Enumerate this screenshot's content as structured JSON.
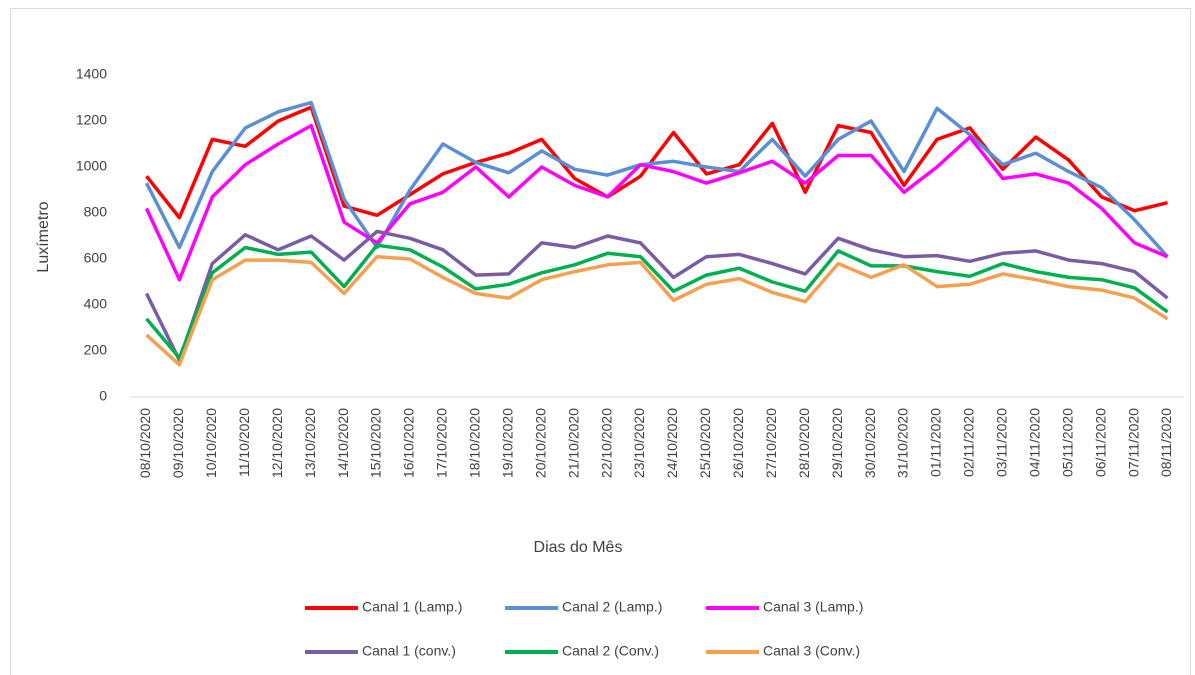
{
  "chart_data": {
    "type": "line",
    "x_label": "Dias do Mês",
    "y_label": "Luxímetro",
    "categories": [
      "08/10/2020",
      "09/10/2020",
      "10/10/2020",
      "11/10/2020",
      "12/10/2020",
      "13/10/2020",
      "14/10/2020",
      "15/10/2020",
      "16/10/2020",
      "17/10/2020",
      "18/10/2020",
      "19/10/2020",
      "20/10/2020",
      "21/10/2020",
      "22/10/2020",
      "23/10/2020",
      "24/10/2020",
      "25/10/2020",
      "26/10/2020",
      "27/10/2020",
      "28/10/2020",
      "29/10/2020",
      "30/10/2020",
      "31/10/2020",
      "01/11/2020",
      "02/11/2020",
      "03/11/2020",
      "04/11/2020",
      "05/11/2020",
      "06/11/2020",
      "07/11/2020",
      "08/11/2020"
    ],
    "series": [
      {
        "name": "Canal 1 (Lamp.)",
        "color": "#ff0000",
        "values": [
          960,
          780,
          1120,
          1090,
          1200,
          1260,
          830,
          790,
          880,
          970,
          1020,
          1060,
          1120,
          950,
          870,
          960,
          1150,
          970,
          1010,
          1190,
          890,
          1180,
          1150,
          920,
          1120,
          1170,
          990,
          1130,
          1030,
          870,
          810,
          845
        ]
      },
      {
        "name": "Canal 2 (Lamp.)",
        "color": "#5b8fd5",
        "values": [
          930,
          650,
          980,
          1170,
          1240,
          1280,
          860,
          650,
          900,
          1100,
          1020,
          975,
          1070,
          990,
          965,
          1010,
          1025,
          1000,
          980,
          1120,
          960,
          1120,
          1200,
          980,
          1255,
          1140,
          1010,
          1060,
          980,
          910,
          770,
          610
        ]
      },
      {
        "name": "Canal 3 (Lamp.)",
        "color": "#ff00ff",
        "values": [
          820,
          510,
          870,
          1010,
          1100,
          1180,
          760,
          670,
          840,
          890,
          1000,
          870,
          1000,
          920,
          870,
          1010,
          980,
          930,
          975,
          1025,
          930,
          1050,
          1050,
          890,
          1000,
          1130,
          950,
          970,
          930,
          820,
          670,
          610
        ]
      },
      {
        "name": "Canal 1 (conv.)",
        "color": "#7a5ca6",
        "values": [
          450,
          160,
          580,
          705,
          640,
          700,
          595,
          720,
          690,
          640,
          530,
          535,
          670,
          650,
          700,
          670,
          520,
          610,
          620,
          580,
          535,
          690,
          640,
          610,
          615,
          590,
          625,
          635,
          595,
          580,
          545,
          430
        ]
      },
      {
        "name": "Canal 2 (Conv.)",
        "color": "#00b050",
        "values": [
          340,
          170,
          540,
          650,
          620,
          630,
          480,
          660,
          640,
          565,
          470,
          490,
          540,
          575,
          625,
          610,
          460,
          530,
          560,
          500,
          460,
          635,
          570,
          570,
          545,
          525,
          580,
          545,
          520,
          510,
          475,
          370
        ]
      },
      {
        "name": "Canal 3 (Conv.)",
        "color": "#f4a04f",
        "values": [
          270,
          140,
          510,
          595,
          595,
          585,
          450,
          610,
          600,
          520,
          450,
          430,
          510,
          545,
          575,
          585,
          420,
          490,
          515,
          455,
          415,
          580,
          520,
          575,
          480,
          490,
          535,
          510,
          480,
          465,
          430,
          340
        ]
      }
    ],
    "ylim": [
      0,
      1400
    ],
    "yticks": [
      0,
      200,
      400,
      600,
      800,
      1000,
      1200,
      1400
    ],
    "grid": false,
    "legend": "bottom"
  }
}
